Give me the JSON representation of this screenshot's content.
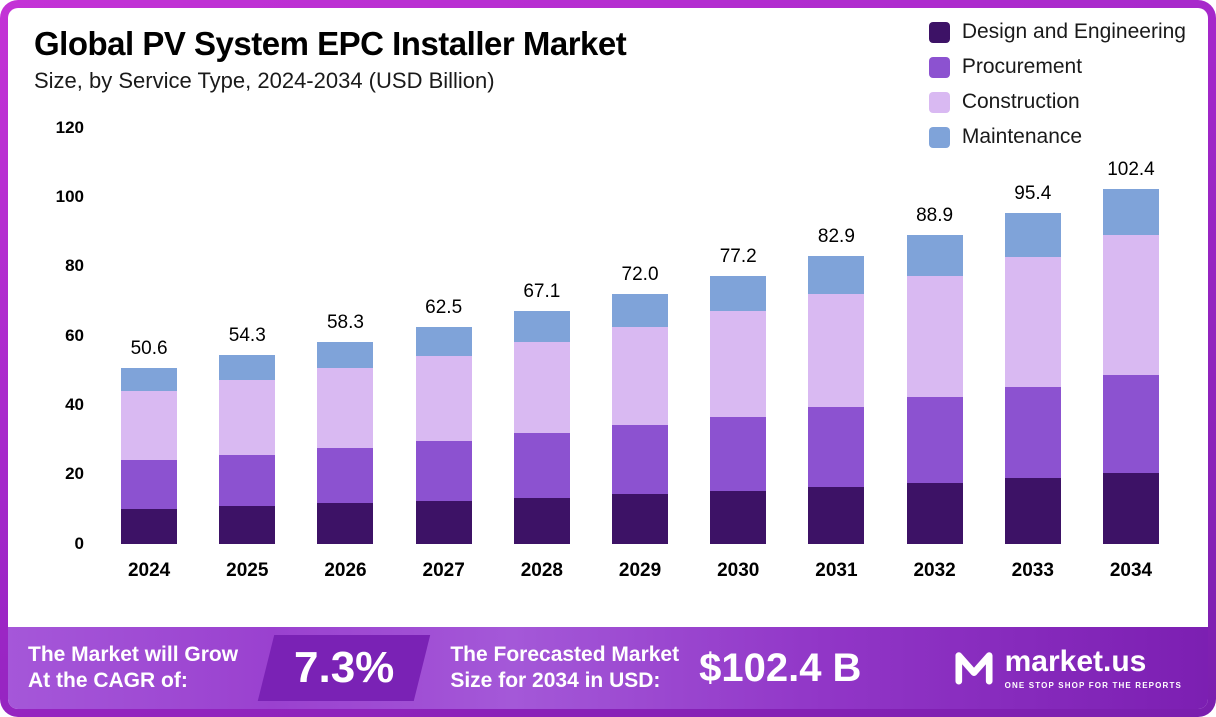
{
  "header": {
    "title": "Global PV System EPC Installer Market",
    "subtitle": "Size, by Service Type, 2024-2034 (USD Billion)"
  },
  "legend": [
    {
      "label": "Design and Engineering",
      "color": "#3d1266"
    },
    {
      "label": "Procurement",
      "color": "#8c52d0"
    },
    {
      "label": "Construction",
      "color": "#d9b9f2"
    },
    {
      "label": "Maintenance",
      "color": "#7fa3d9"
    }
  ],
  "chart_data": {
    "type": "bar",
    "stacked": true,
    "title": "Global PV System EPC Installer Market Size, by Service Type, 2024-2034 (USD Billion)",
    "categories": [
      "2024",
      "2025",
      "2026",
      "2027",
      "2028",
      "2029",
      "2030",
      "2031",
      "2032",
      "2033",
      "2034"
    ],
    "series": [
      {
        "name": "Design and Engineering",
        "color": "#3d1266",
        "values": [
          10.1,
          10.8,
          11.6,
          12.4,
          13.3,
          14.3,
          15.3,
          16.4,
          17.6,
          18.9,
          20.3
        ]
      },
      {
        "name": "Procurement",
        "color": "#8c52d0",
        "values": [
          13.9,
          14.9,
          16.0,
          17.2,
          18.5,
          19.8,
          21.3,
          22.9,
          24.6,
          26.4,
          28.3
        ]
      },
      {
        "name": "Construction",
        "color": "#d9b9f2",
        "values": [
          19.9,
          21.4,
          23.0,
          24.6,
          26.4,
          28.3,
          30.4,
          32.6,
          35.0,
          37.5,
          40.3
        ]
      },
      {
        "name": "Maintenance",
        "color": "#7fa3d9",
        "values": [
          6.7,
          7.2,
          7.7,
          8.3,
          8.9,
          9.6,
          10.2,
          11.0,
          11.7,
          12.6,
          13.5
        ]
      }
    ],
    "totals_display": [
      "50.6",
      "54.3",
      "58.3",
      "62.5",
      "67.1",
      "72.0",
      "77.2",
      "82.9",
      "88.9",
      "95.4",
      "102.4"
    ],
    "ylim": [
      0,
      120
    ],
    "yticks": [
      0,
      20,
      40,
      60,
      80,
      100,
      120
    ],
    "grid": false,
    "legend_position": "top-right"
  },
  "footer": {
    "cagr_label_line1": "The Market will Grow",
    "cagr_label_line2": "At the CAGR of:",
    "cagr_value": "7.3%",
    "forecast_label_line1": "The Forecasted Market",
    "forecast_label_line2": "Size for 2034 in USD:",
    "forecast_value": "$102.4 B",
    "brand_name": "market.us",
    "brand_tagline": "ONE STOP SHOP FOR THE REPORTS"
  },
  "colors": {
    "frame_gradient_start": "#c433d6",
    "frame_gradient_end": "#7a1fae",
    "footer_gradient_start": "#a557d9",
    "footer_gradient_end": "#7c1fb2",
    "cagr_panel": "#7a22b5"
  }
}
